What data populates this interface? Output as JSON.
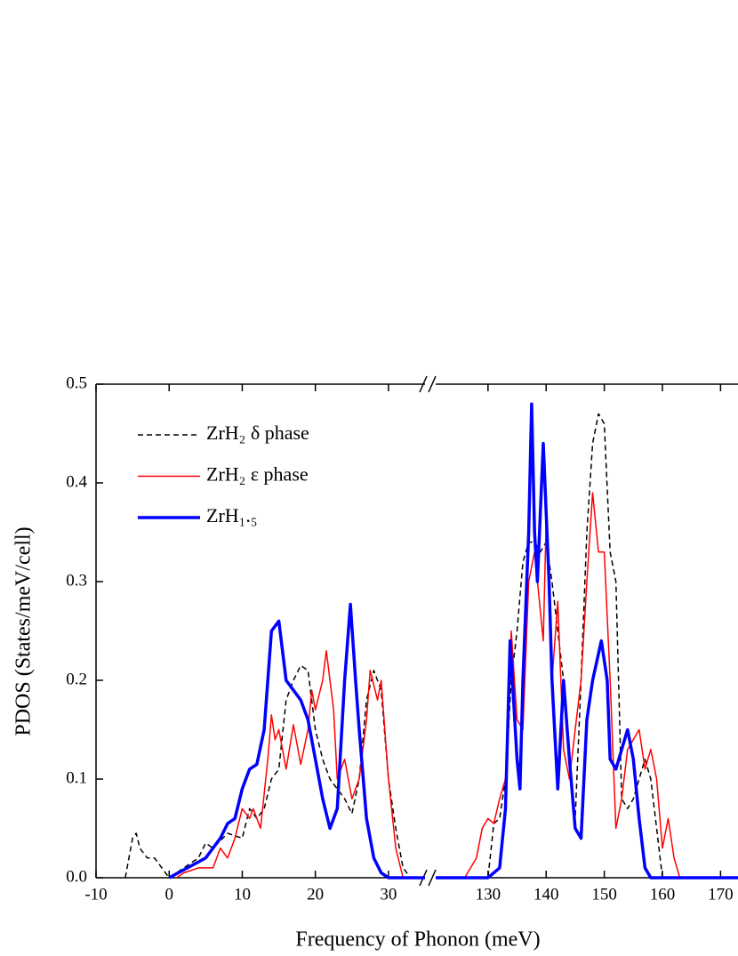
{
  "chart_data": {
    "type": "line",
    "xlabel": "Frequency of Phonon (meV)",
    "ylabel": "PDOS (States/meV/cell)",
    "ylim": [
      0,
      0.5
    ],
    "yticks": [
      {
        "value": 0,
        "label": "0.0"
      },
      0.1,
      0.2,
      0.3,
      0.4,
      0.5
    ],
    "xaxis_segments": [
      {
        "xlim": [
          -10,
          35
        ],
        "xticks": [
          -10,
          0,
          10,
          20,
          30
        ]
      },
      {
        "xlim": [
          121,
          173
        ],
        "xticks": [
          130,
          140,
          150,
          160,
          170
        ]
      }
    ],
    "legend": "upper left",
    "series": [
      {
        "name": "ZrH₂ δ phase",
        "color": "#000000",
        "style": "dashed",
        "x": [
          -6,
          -5,
          -4.5,
          -4,
          -3,
          -2,
          -1,
          0,
          2,
          4,
          5,
          6,
          8,
          10,
          11,
          12,
          13,
          14,
          15,
          16,
          17,
          18,
          19,
          20,
          21,
          22,
          23,
          24,
          25,
          26,
          27,
          28,
          29,
          30,
          31,
          32,
          33,
          35,
          121,
          130,
          131,
          132,
          133,
          134,
          135,
          136,
          137,
          138,
          139,
          140,
          141,
          142,
          143,
          144,
          145,
          146,
          147,
          148,
          149,
          150,
          151,
          152,
          153,
          154,
          155,
          156,
          157,
          158,
          159,
          160,
          173
        ],
        "values": [
          0,
          0.04,
          0.045,
          0.03,
          0.02,
          0.02,
          0.01,
          0,
          0.01,
          0.02,
          0.035,
          0.03,
          0.045,
          0.04,
          0.07,
          0.06,
          0.07,
          0.1,
          0.11,
          0.18,
          0.2,
          0.215,
          0.21,
          0.15,
          0.12,
          0.1,
          0.09,
          0.08,
          0.065,
          0.1,
          0.18,
          0.21,
          0.19,
          0.1,
          0.05,
          0.01,
          0,
          0,
          0,
          0,
          0.055,
          0.06,
          0.1,
          0.2,
          0.25,
          0.32,
          0.34,
          0.34,
          0.33,
          0.34,
          0.3,
          0.25,
          0.2,
          0.12,
          0.06,
          0.2,
          0.35,
          0.44,
          0.47,
          0.46,
          0.33,
          0.3,
          0.08,
          0.07,
          0.08,
          0.1,
          0.12,
          0.1,
          0.05,
          0,
          0
        ]
      },
      {
        "name": "ZrH₂ ε phase",
        "color": "#ff0000",
        "style": "solid",
        "x": [
          1,
          2,
          4,
          6,
          7,
          8,
          9,
          10,
          11,
          11.5,
          12.5,
          13.5,
          14,
          14.5,
          15,
          16,
          17,
          18,
          19,
          19.5,
          20,
          21,
          21.5,
          22.5,
          23,
          24,
          25,
          26,
          27,
          27.5,
          28.5,
          29,
          30,
          31,
          32,
          35,
          121,
          126,
          128,
          129,
          130,
          131,
          132,
          133,
          134,
          135,
          136,
          137,
          138,
          139.5,
          140,
          141,
          142,
          143,
          144,
          145,
          146,
          147,
          148,
          149,
          150,
          151,
          152,
          153,
          154,
          155,
          156,
          157,
          158,
          159,
          160,
          161,
          162,
          163,
          173
        ],
        "values": [
          0,
          0.005,
          0.01,
          0.01,
          0.03,
          0.02,
          0.04,
          0.07,
          0.06,
          0.07,
          0.05,
          0.12,
          0.165,
          0.14,
          0.15,
          0.11,
          0.155,
          0.115,
          0.15,
          0.19,
          0.17,
          0.2,
          0.23,
          0.17,
          0.1,
          0.12,
          0.08,
          0.1,
          0.16,
          0.21,
          0.18,
          0.2,
          0.1,
          0.03,
          0,
          0,
          0,
          0,
          0.02,
          0.05,
          0.06,
          0.055,
          0.08,
          0.1,
          0.25,
          0.16,
          0.15,
          0.3,
          0.33,
          0.24,
          0.36,
          0.2,
          0.28,
          0.13,
          0.1,
          0.15,
          0.2,
          0.3,
          0.39,
          0.33,
          0.33,
          0.2,
          0.05,
          0.08,
          0.13,
          0.14,
          0.15,
          0.11,
          0.13,
          0.1,
          0.03,
          0.06,
          0.02,
          0,
          0
        ]
      },
      {
        "name": "ZrH₁.₅",
        "color": "#0000ff",
        "style": "thick",
        "x": [
          0,
          5,
          7,
          8,
          9,
          10,
          11,
          12,
          13,
          14,
          15,
          16,
          17,
          18,
          19,
          20,
          21,
          22,
          23,
          24,
          24.8,
          25.5,
          26,
          27,
          28,
          29,
          30,
          35,
          121,
          130,
          132,
          133,
          133.8,
          135,
          135.5,
          136,
          137,
          137.5,
          138,
          138.5,
          139.5,
          140.5,
          141,
          142,
          143,
          144,
          145,
          146,
          147,
          148,
          149.5,
          150.5,
          151,
          152,
          153,
          154,
          155,
          156,
          157,
          158,
          173
        ],
        "values": [
          0,
          0.02,
          0.04,
          0.055,
          0.06,
          0.09,
          0.11,
          0.115,
          0.15,
          0.25,
          0.26,
          0.2,
          0.19,
          0.18,
          0.16,
          0.12,
          0.08,
          0.05,
          0.07,
          0.2,
          0.277,
          0.2,
          0.15,
          0.06,
          0.02,
          0.005,
          0,
          0,
          0,
          0,
          0.01,
          0.07,
          0.24,
          0.12,
          0.09,
          0.2,
          0.35,
          0.48,
          0.35,
          0.3,
          0.44,
          0.3,
          0.2,
          0.09,
          0.2,
          0.12,
          0.05,
          0.04,
          0.16,
          0.2,
          0.24,
          0.2,
          0.12,
          0.11,
          0.13,
          0.15,
          0.12,
          0.06,
          0.01,
          0,
          0
        ]
      }
    ]
  }
}
